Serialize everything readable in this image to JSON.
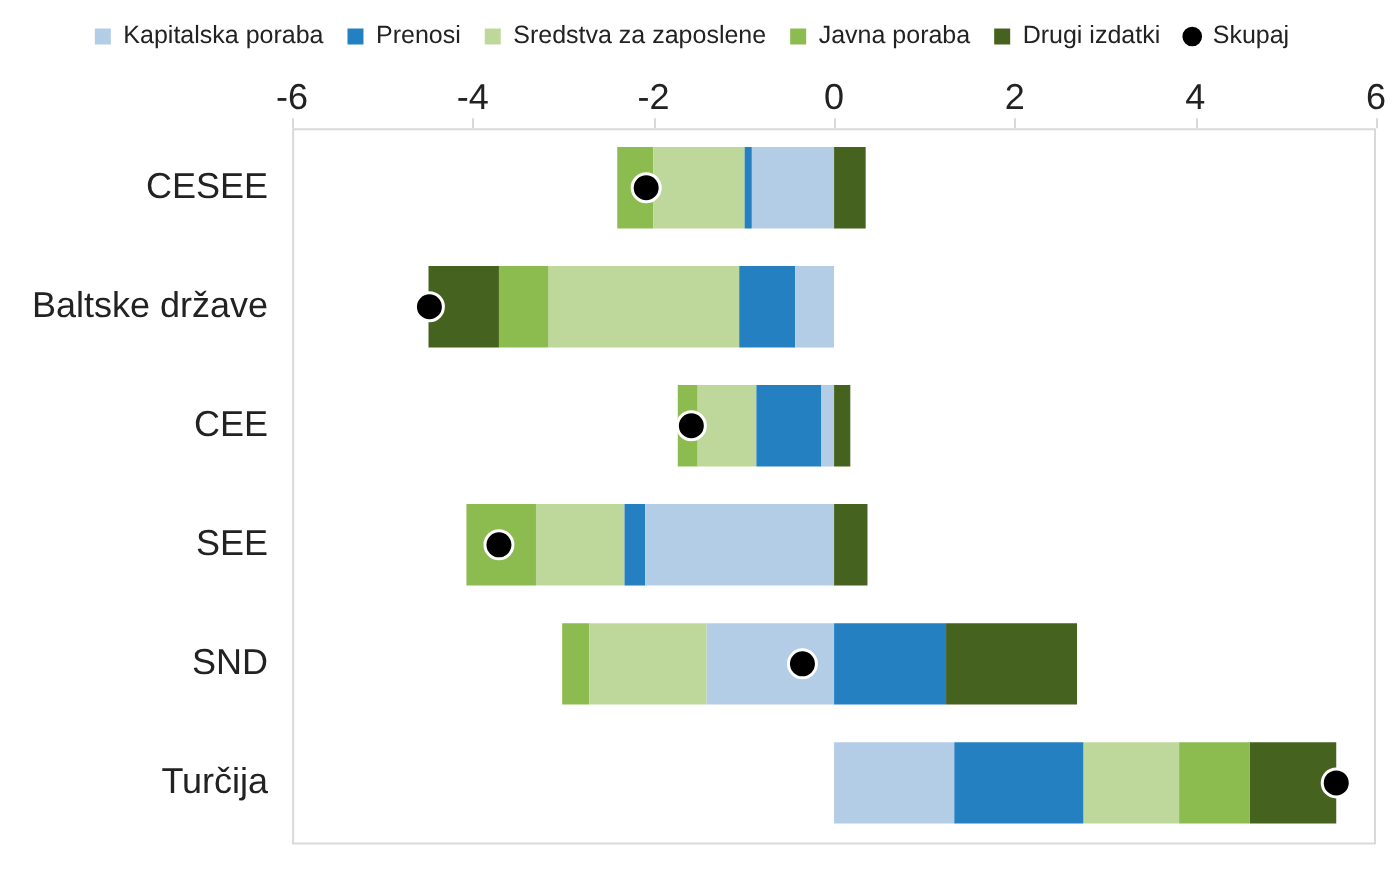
{
  "chart_data": {
    "type": "bar",
    "orientation": "horizontal",
    "stacked": true,
    "legend": "top",
    "categories": [
      "CESEE",
      "Baltske države",
      "CEE",
      "SEE",
      "SND",
      "Turčija"
    ],
    "xlim": [
      -6,
      6
    ],
    "xticks": [
      -6,
      -4,
      -2,
      0,
      2,
      4,
      6
    ],
    "series": [
      {
        "name": "Kapitalska poraba",
        "color": "#b4cde6",
        "values": [
          -0.91,
          -0.43,
          -0.14,
          -2.09,
          -1.41,
          1.33
        ]
      },
      {
        "name": "Prenosi",
        "color": "#2580c2",
        "values": [
          -0.08,
          -0.62,
          -0.72,
          -0.23,
          1.24,
          1.43
        ]
      },
      {
        "name": "Sredstva za zaposlene",
        "color": "#bed89c",
        "values": [
          -1.01,
          -2.11,
          -0.65,
          -0.98,
          -1.3,
          1.06
        ]
      },
      {
        "name": "Javna poraba",
        "color": "#8cbb50",
        "values": [
          -0.4,
          -0.55,
          -0.22,
          -0.77,
          -0.3,
          0.78
        ]
      },
      {
        "name": "Drugi izdatki",
        "color": "#46621f",
        "values": [
          0.35,
          -0.78,
          0.18,
          0.37,
          1.45,
          0.96
        ]
      },
      {
        "name": "Skupaj",
        "type": "scatter",
        "marker": "circle",
        "color": "#000000",
        "values": [
          -2.08,
          -4.48,
          -1.58,
          -3.71,
          -0.35,
          5.56
        ]
      }
    ]
  }
}
